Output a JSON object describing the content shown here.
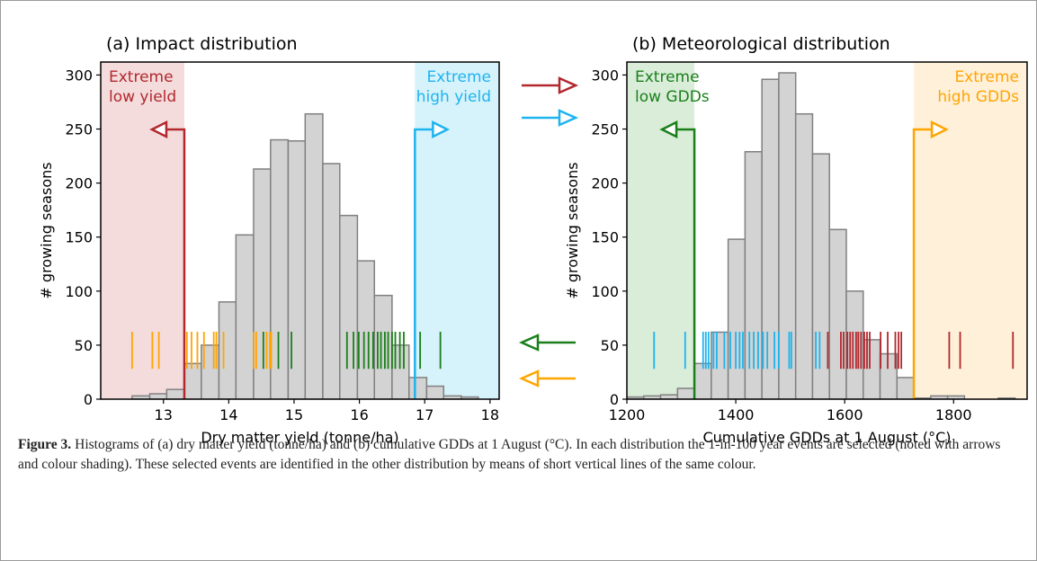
{
  "chart_data": [
    {
      "type": "histogram",
      "title": "(a) Impact distribution",
      "xlabel": "Dry matter yield (tonne/ha)",
      "ylabel": "# growing seasons",
      "bins": [
        12.52,
        12.79,
        13.05,
        13.32,
        13.58,
        13.85,
        14.11,
        14.38,
        14.64,
        14.91,
        15.17,
        15.44,
        15.7,
        15.97,
        16.23,
        16.5,
        16.76,
        17.03,
        17.29,
        17.56,
        17.82
      ],
      "values": [
        3,
        5,
        9,
        33,
        50,
        90,
        152,
        213,
        240,
        239,
        264,
        218,
        170,
        128,
        96,
        50,
        20,
        12,
        3,
        2
      ],
      "color": "#d3d3d3",
      "edgecolor": "#808080",
      "xlim": [
        12.04,
        18.14
      ],
      "xticks": [
        13,
        14,
        15,
        16,
        17,
        18
      ],
      "ylim": [
        0,
        312
      ],
      "yticks": [
        0,
        50,
        100,
        150,
        200,
        250,
        300
      ],
      "thresholds": [
        {
          "value": 13.32,
          "color": "#b2282e",
          "shade": "#f4dcdc",
          "direction": "left",
          "label": [
            "Extreme",
            "low yield"
          ]
        },
        {
          "value": 16.85,
          "color": "#1eb4ee",
          "shade": "#d6f2fb",
          "direction": "right",
          "label": [
            "Extreme",
            "high yield"
          ]
        }
      ],
      "rugs": [
        {
          "color": "#ffa500",
          "values": [
            12.52,
            12.83,
            12.93,
            13.36,
            13.43,
            13.52,
            13.62,
            13.77,
            13.81,
            13.92,
            14.38,
            14.42,
            14.58,
            14.63,
            14.65
          ]
        },
        {
          "color": "#1a7f1a",
          "values": [
            14.53,
            14.76,
            14.96,
            15.81,
            15.91,
            15.99,
            16.07,
            16.14,
            16.21,
            16.28,
            16.33,
            16.39,
            16.44,
            16.5,
            16.55,
            16.62,
            16.68,
            16.93,
            17.24
          ]
        }
      ]
    },
    {
      "type": "histogram",
      "title": "(b) Meteorological distribution",
      "xlabel": "Cumulative GDDs at 1 August (°C)",
      "ylabel": "# growing seasons",
      "bins": [
        1200,
        1231,
        1262,
        1293,
        1324,
        1355,
        1386,
        1417,
        1448,
        1479,
        1510,
        1541,
        1572,
        1603,
        1634,
        1665,
        1696,
        1727,
        1758,
        1789,
        1820,
        1851,
        1882,
        1913
      ],
      "values": [
        2,
        3,
        4,
        10,
        33,
        62,
        148,
        229,
        296,
        302,
        264,
        227,
        157,
        100,
        55,
        42,
        20,
        1,
        3,
        3,
        0,
        0,
        1
      ],
      "color": "#d3d3d3",
      "edgecolor": "#808080",
      "xlim": [
        1200,
        1935
      ],
      "xticks": [
        1200,
        1400,
        1600,
        1800
      ],
      "ylim": [
        0,
        312
      ],
      "yticks": [
        0,
        50,
        100,
        150,
        200,
        250,
        300
      ],
      "thresholds": [
        {
          "value": 1324,
          "color": "#1a7f1a",
          "shade": "#d9edd9",
          "direction": "left",
          "label": [
            "Extreme",
            "low GDDs"
          ]
        },
        {
          "value": 1727,
          "color": "#ffa500",
          "shade": "#fff0d9",
          "direction": "right",
          "label": [
            "Extreme",
            "high GDDs"
          ]
        }
      ],
      "rugs": [
        {
          "color": "#1eb4ee",
          "values": [
            1250,
            1307,
            1340,
            1345,
            1350,
            1359,
            1365,
            1379,
            1390,
            1400,
            1407,
            1413,
            1425,
            1433,
            1441,
            1450,
            1458,
            1471,
            1479,
            1498,
            1502,
            1547,
            1554
          ]
        },
        {
          "color": "#b2282e",
          "values": [
            1569,
            1593,
            1598,
            1605,
            1610,
            1615,
            1621,
            1625,
            1630,
            1636,
            1641,
            1646,
            1666,
            1679,
            1693,
            1699,
            1704,
            1792,
            1812,
            1909
          ]
        }
      ]
    }
  ],
  "caption": {
    "label": "Figure 3.",
    "text": "Histograms of (a) dry matter yield (tonne/ha) and (b) cumulative GDDs at 1 August (°C). In each distribution the 1-in-100 year events are selected (noted with arrows and colour shading). These selected events are identified in the other distribution by means of short vertical lines of the same colour."
  }
}
